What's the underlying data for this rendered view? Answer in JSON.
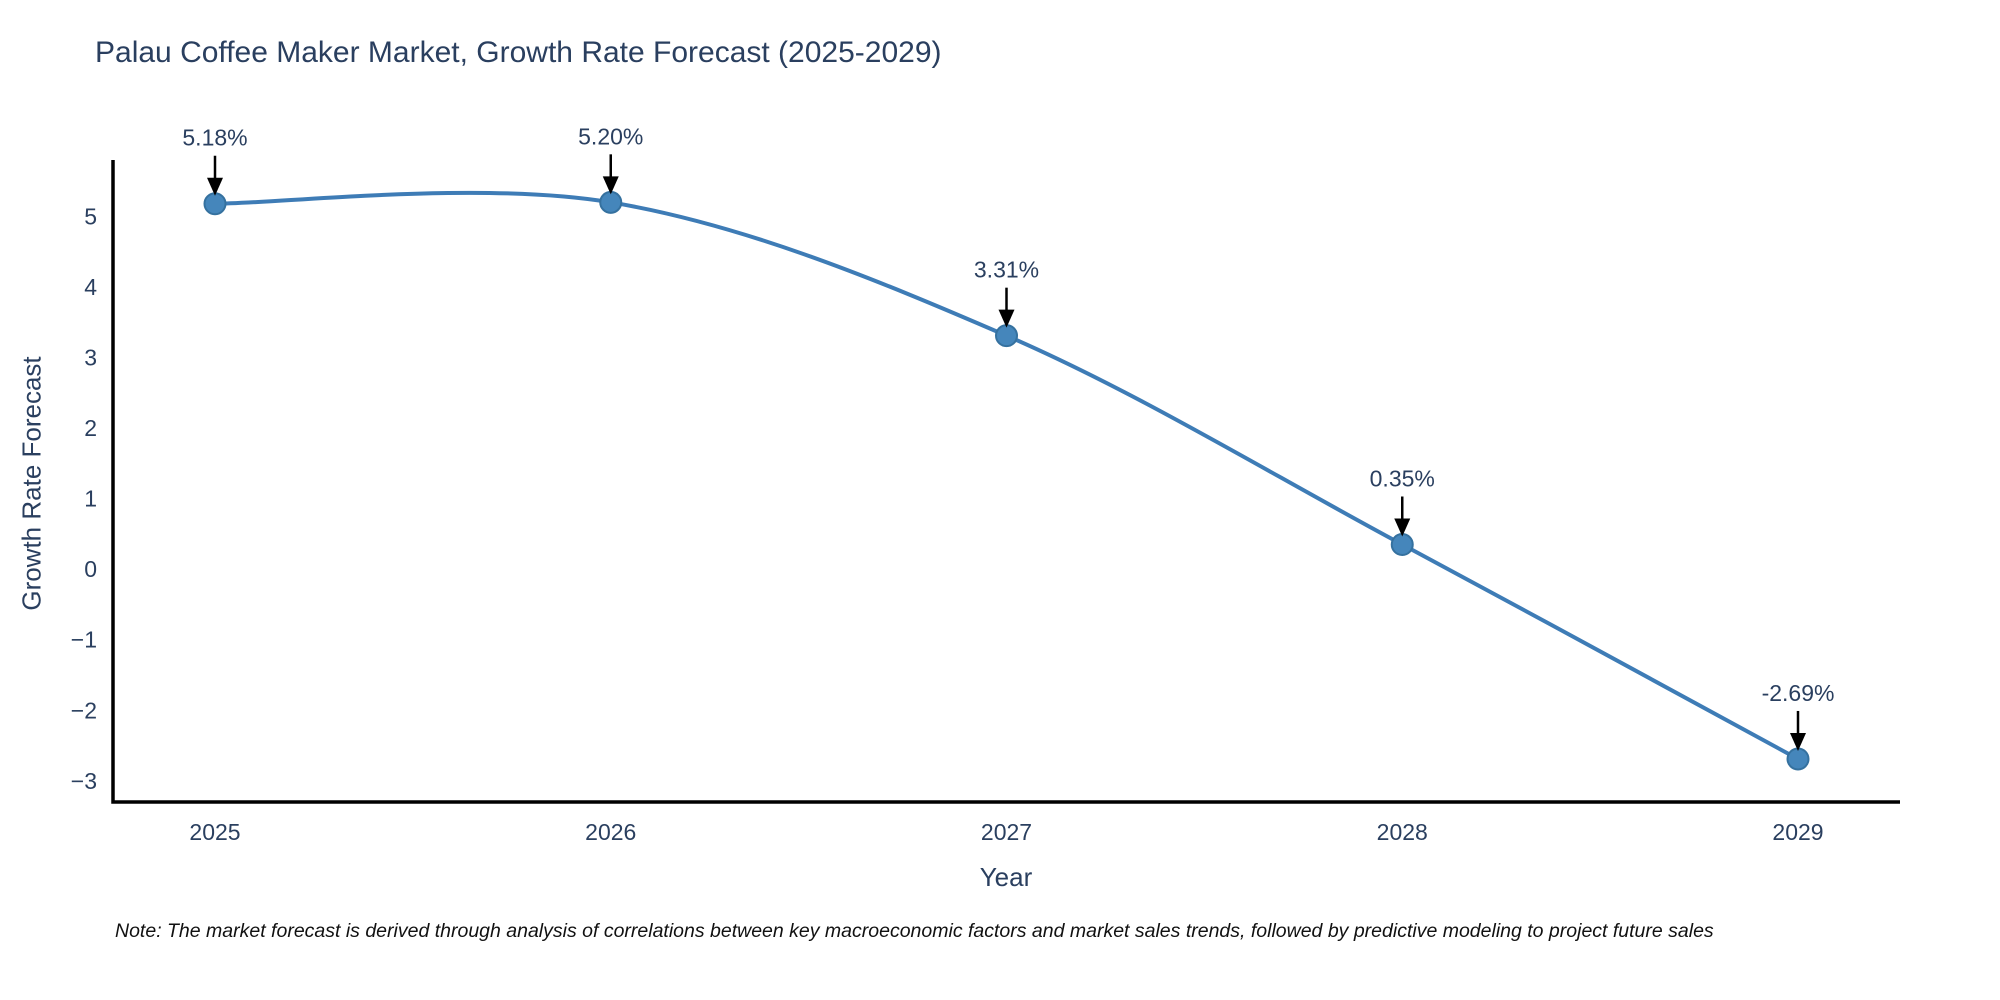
{
  "title": "Palau Coffee Maker Market, Growth Rate Forecast (2025-2029)",
  "note": "Note: The market forecast is derived through analysis of correlations between key macroeconomic factors and market sales trends, followed by predictive modeling to project future sales",
  "chart_data": {
    "type": "line",
    "title": "Palau Coffee Maker Market, Growth Rate Forecast (2025-2029)",
    "xlabel": "Year",
    "ylabel": "Growth Rate Forecast",
    "categories": [
      "2025",
      "2026",
      "2027",
      "2028",
      "2029"
    ],
    "series": [
      {
        "name": "Growth Rate Forecast",
        "values": [
          5.18,
          5.2,
          3.31,
          0.35,
          -2.69
        ]
      }
    ],
    "data_labels": [
      "5.18%",
      "5.20%",
      "3.31%",
      "0.35%",
      "-2.69%"
    ],
    "yticks": [
      -3,
      -2,
      -1,
      0,
      1,
      2,
      3,
      4,
      5
    ],
    "ylim": [
      -3.3,
      5.8
    ],
    "line_shape": "spline",
    "grid": false,
    "legend_position": "none",
    "colors": {
      "line": "#3e7cb6",
      "marker_fill": "#4586bb",
      "marker_edge": "#35719f",
      "text": "#2a3f5f",
      "axis": "#000000",
      "arrow": "#000000",
      "note_text": "#111111"
    }
  }
}
